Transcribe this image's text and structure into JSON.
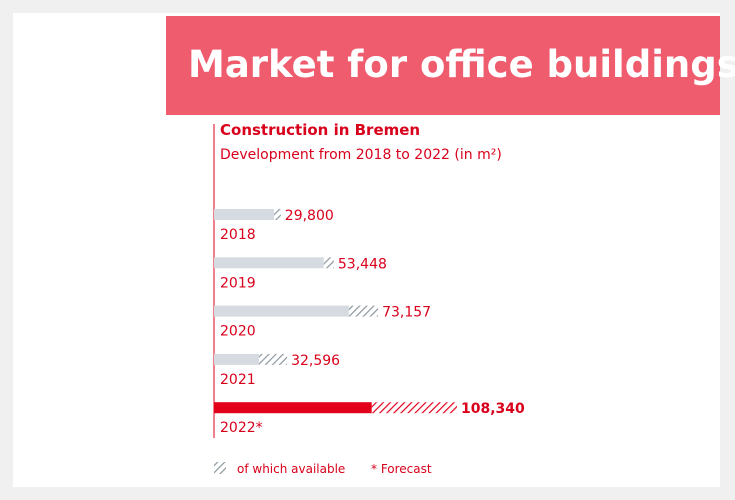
{
  "page": {
    "banner_title": "Market for office buildings"
  },
  "chart_data": {
    "type": "bar",
    "orientation": "horizontal",
    "title": "Construction in Bremen",
    "subtitle": "Development from 2018 to 2022 (in m²)",
    "categories": [
      "2018",
      "2019",
      "2020",
      "2021",
      "2022*"
    ],
    "values": [
      29800,
      53448,
      73157,
      32596,
      108340
    ],
    "value_labels": [
      "29,800",
      "53,448",
      "73,157",
      "32,596",
      "108,340"
    ],
    "available_values": [
      3000,
      4500,
      13000,
      12500,
      38000
    ],
    "highlight_index": 4,
    "xlim": [
      0,
      108340
    ],
    "grid": false,
    "legend": {
      "label": "of which available",
      "note": "* Forecast",
      "placement": "bottom-left"
    },
    "colors": {
      "bar": "#d5dbe0",
      "bar_highlight": "#e3001b",
      "hatch": "#8a969e",
      "text": "#d9001b",
      "axis": "#e3001b"
    }
  }
}
